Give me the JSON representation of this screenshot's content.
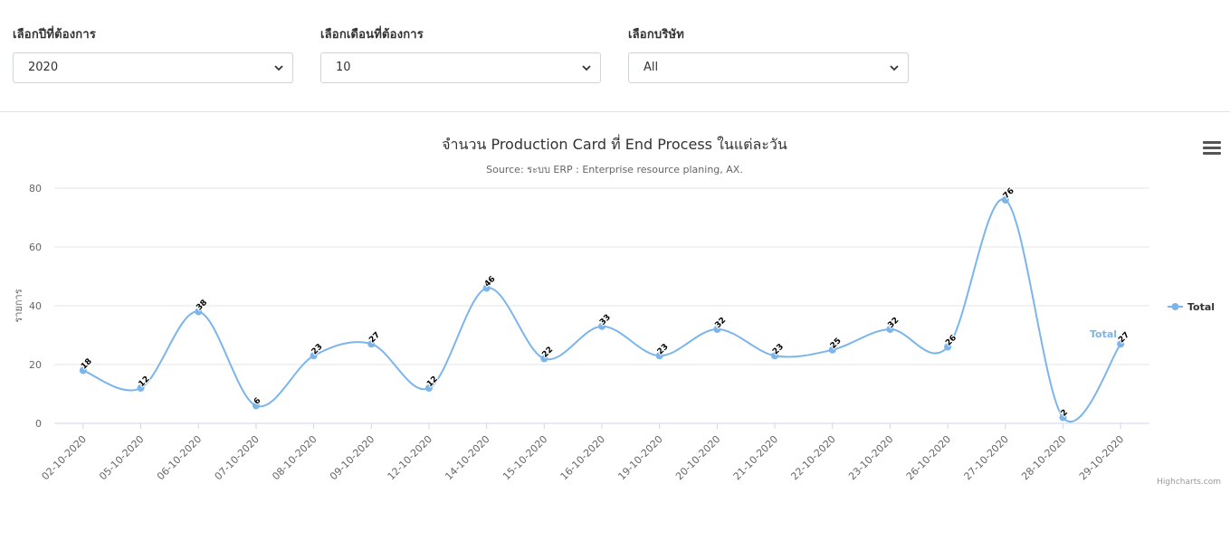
{
  "filters": {
    "year": {
      "label": "เลือกปีที่ต้องการ",
      "value": "2020"
    },
    "month": {
      "label": "เลือกเดือนที่ต้องการ",
      "value": "10"
    },
    "company": {
      "label": "เลือกบริษัท",
      "value": "All"
    }
  },
  "chart_menu_icon": "hamburger-menu-icon",
  "credit": "Highcharts.com",
  "chart_data": {
    "type": "line",
    "title": "จำนวน Production Card ที่ End Process ในแต่ละวัน",
    "subtitle": "Source: ระบบ ERP : Enterprise resource planing, AX.",
    "xlabel": "",
    "ylabel": "รายการ",
    "ylim": [
      0,
      80
    ],
    "yticks": [
      0,
      20,
      40,
      60,
      80
    ],
    "grid": true,
    "legend_position": "right",
    "categories": [
      "02-10-2020",
      "05-10-2020",
      "06-10-2020",
      "07-10-2020",
      "08-10-2020",
      "09-10-2020",
      "12-10-2020",
      "14-10-2020",
      "15-10-2020",
      "16-10-2020",
      "19-10-2020",
      "20-10-2020",
      "21-10-2020",
      "22-10-2020",
      "23-10-2020",
      "26-10-2020",
      "27-10-2020",
      "28-10-2020",
      "29-10-2020"
    ],
    "series": [
      {
        "name": "Total",
        "color": "#7cb5ec",
        "values": [
          18,
          12,
          38,
          6,
          23,
          27,
          12,
          46,
          22,
          33,
          23,
          32,
          23,
          25,
          32,
          26,
          76,
          2,
          27
        ]
      }
    ],
    "series_end_label": "Total"
  }
}
